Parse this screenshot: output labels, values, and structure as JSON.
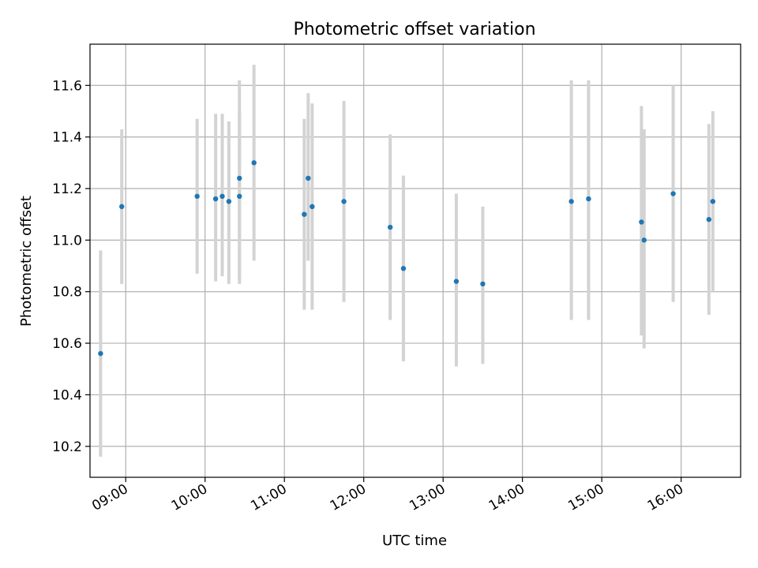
{
  "chart_data": {
    "type": "scatter",
    "title": "Photometric offset variation",
    "xlabel": "UTC time",
    "ylabel": "Photometric offset",
    "x_axis_type": "time",
    "xlim": [
      "08:33",
      "16:45"
    ],
    "ylim": [
      10.08,
      11.76
    ],
    "x_ticks": [
      "09:00",
      "10:00",
      "11:00",
      "12:00",
      "13:00",
      "14:00",
      "15:00",
      "16:00"
    ],
    "y_ticks": [
      "10.2",
      "10.4",
      "10.6",
      "10.8",
      "11.0",
      "11.2",
      "11.4",
      "11.6"
    ],
    "grid": true,
    "point_color": "#1f77b4",
    "errorbar_color": "#d3d3d3",
    "points": [
      {
        "x": "08:41",
        "y": 10.56,
        "ylow": 10.16,
        "yhigh": 10.96
      },
      {
        "x": "08:57",
        "y": 11.13,
        "ylow": 10.83,
        "yhigh": 11.43
      },
      {
        "x": "09:54",
        "y": 11.17,
        "ylow": 10.87,
        "yhigh": 11.47
      },
      {
        "x": "10:08",
        "y": 11.16,
        "ylow": 10.84,
        "yhigh": 11.49
      },
      {
        "x": "10:13",
        "y": 11.17,
        "ylow": 10.86,
        "yhigh": 11.49
      },
      {
        "x": "10:18",
        "y": 11.15,
        "ylow": 10.83,
        "yhigh": 11.46
      },
      {
        "x": "10:26",
        "y": 11.24,
        "ylow": 10.83,
        "yhigh": 11.62
      },
      {
        "x": "10:26",
        "y": 11.17,
        "ylow": 10.85,
        "yhigh": 11.5
      },
      {
        "x": "10:37",
        "y": 11.3,
        "ylow": 10.92,
        "yhigh": 11.68
      },
      {
        "x": "11:15",
        "y": 11.1,
        "ylow": 10.73,
        "yhigh": 11.47
      },
      {
        "x": "11:18",
        "y": 11.24,
        "ylow": 10.92,
        "yhigh": 11.57
      },
      {
        "x": "11:21",
        "y": 11.13,
        "ylow": 10.73,
        "yhigh": 11.53
      },
      {
        "x": "11:45",
        "y": 11.15,
        "ylow": 10.76,
        "yhigh": 11.54
      },
      {
        "x": "12:20",
        "y": 11.05,
        "ylow": 10.69,
        "yhigh": 11.41
      },
      {
        "x": "12:30",
        "y": 10.89,
        "ylow": 10.53,
        "yhigh": 11.25
      },
      {
        "x": "13:10",
        "y": 10.84,
        "ylow": 10.51,
        "yhigh": 11.18
      },
      {
        "x": "13:30",
        "y": 10.83,
        "ylow": 10.52,
        "yhigh": 11.13
      },
      {
        "x": "14:37",
        "y": 11.15,
        "ylow": 10.69,
        "yhigh": 11.62
      },
      {
        "x": "14:50",
        "y": 11.16,
        "ylow": 10.69,
        "yhigh": 11.62
      },
      {
        "x": "15:30",
        "y": 11.07,
        "ylow": 10.63,
        "yhigh": 11.52
      },
      {
        "x": "15:32",
        "y": 11.0,
        "ylow": 10.58,
        "yhigh": 11.43
      },
      {
        "x": "15:54",
        "y": 11.18,
        "ylow": 10.76,
        "yhigh": 11.6
      },
      {
        "x": "16:21",
        "y": 11.08,
        "ylow": 10.71,
        "yhigh": 11.45
      },
      {
        "x": "16:24",
        "y": 11.15,
        "ylow": 10.8,
        "yhigh": 11.5
      }
    ]
  }
}
